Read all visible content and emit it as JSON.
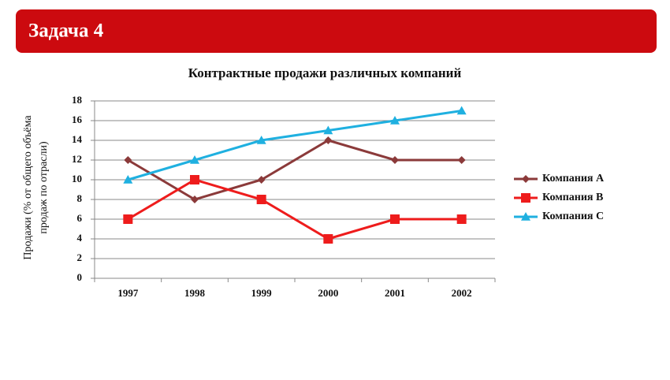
{
  "header": {
    "title": "Задача 4"
  },
  "chart_data": {
    "type": "line",
    "title": "Контрактные продажи различных компаний",
    "ylabel": [
      "Продажи (% от  общего объёма",
      "продаж по отрасли)"
    ],
    "categories": [
      "1997",
      "1998",
      "1999",
      "2000",
      "2001",
      "2002"
    ],
    "series": [
      {
        "name": "Компания А",
        "color": "#8b3a3a",
        "marker": "diamond",
        "values": [
          12,
          8,
          10,
          14,
          12,
          12
        ]
      },
      {
        "name": "Компания В",
        "color": "#ee1c1c",
        "marker": "square",
        "values": [
          6,
          10,
          8,
          4,
          6,
          6
        ]
      },
      {
        "name": "Компания С",
        "color": "#1fb0e0",
        "marker": "triangle",
        "values": [
          10,
          12,
          14,
          15,
          16,
          17
        ]
      }
    ],
    "ylim": [
      0,
      18
    ],
    "yticks": [
      0,
      2,
      4,
      6,
      8,
      10,
      12,
      14,
      16,
      18
    ],
    "grid": true,
    "legend": "right"
  }
}
